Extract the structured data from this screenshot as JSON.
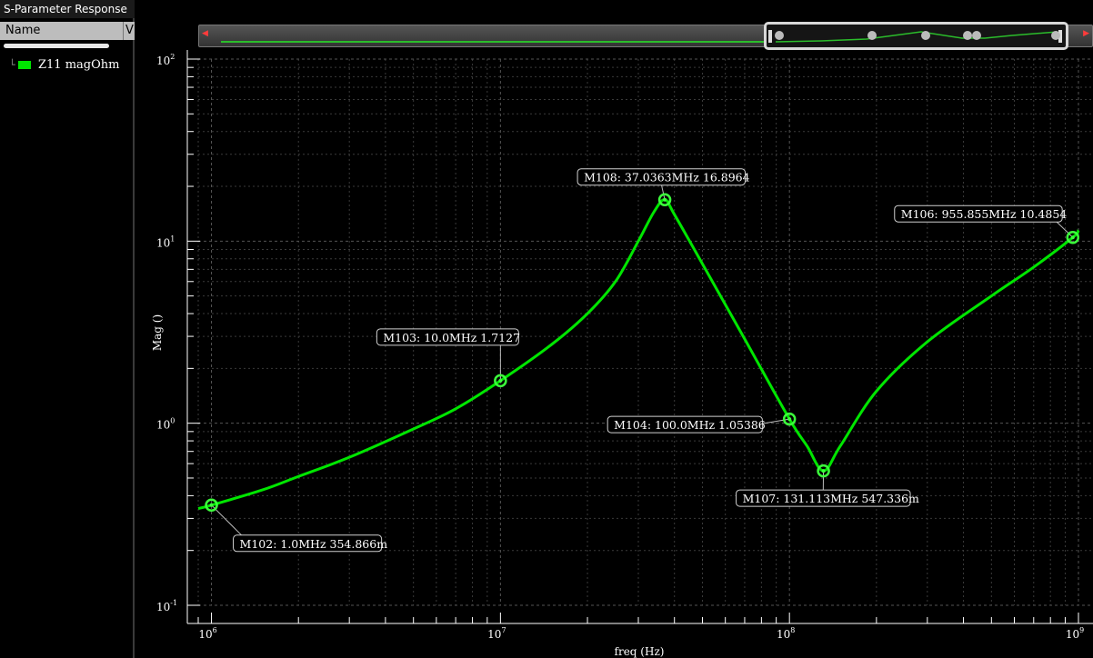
{
  "window": {
    "title": "S-Parameter Response"
  },
  "legend_panel": {
    "column_name": "Name",
    "column_v": "V",
    "items": [
      {
        "label": "Z11 magOhm",
        "color": "#00e600"
      }
    ]
  },
  "chart_data": {
    "type": "line",
    "xlabel": "freq (Hz)",
    "ylabel": "Mag ()",
    "x_scale": "log",
    "y_scale": "log",
    "xlim": [
      900000,
      1000000000
    ],
    "ylim": [
      0.1,
      100
    ],
    "x_ticks": [
      {
        "value": 1000000,
        "base": "10",
        "exp": "6"
      },
      {
        "value": 10000000,
        "base": "10",
        "exp": "7"
      },
      {
        "value": 100000000,
        "base": "10",
        "exp": "8"
      },
      {
        "value": 1000000000,
        "base": "10",
        "exp": "9"
      }
    ],
    "y_ticks": [
      {
        "value": 100,
        "base": "10",
        "exp": "2"
      },
      {
        "value": 10,
        "base": "10",
        "exp": "1"
      },
      {
        "value": 1,
        "base": "10",
        "exp": "0"
      },
      {
        "value": 0.1,
        "base": "10",
        "exp": "-1"
      }
    ],
    "grid": true,
    "series": [
      {
        "name": "Z11 magOhm",
        "color": "#00e600",
        "x": [
          900000,
          1000000,
          1500000,
          2000000,
          3000000,
          5000000,
          7000000,
          10000000,
          15000000,
          20000000,
          25000000,
          30000000,
          34000000,
          37036300,
          40000000,
          50000000,
          70000000,
          100000000,
          115000000,
          131113000,
          150000000,
          200000000,
          300000000,
          500000000,
          700000000,
          955855000,
          1000000000
        ],
        "y": [
          0.34,
          0.354866,
          0.43,
          0.51,
          0.65,
          0.93,
          1.2,
          1.7127,
          2.7,
          4.0,
          6.0,
          10.0,
          14.5,
          16.8964,
          14.0,
          7.5,
          2.9,
          1.05386,
          0.75,
          0.547336,
          0.75,
          1.5,
          2.8,
          5.0,
          7.2,
          10.4854,
          11.5
        ]
      }
    ],
    "markers": [
      {
        "name": "M102",
        "x": 1000000,
        "y": 0.354866,
        "label": "M102: 1.0MHz 354.866m"
      },
      {
        "name": "M103",
        "x": 10000000,
        "y": 1.7127,
        "label": "M103: 10.0MHz 1.7127"
      },
      {
        "name": "M108",
        "x": 37036300,
        "y": 16.8964,
        "label": "M108: 37.0363MHz 16.8964"
      },
      {
        "name": "M104",
        "x": 100000000,
        "y": 1.05386,
        "label": "M104: 100.0MHz 1.05386"
      },
      {
        "name": "M107",
        "x": 131113000,
        "y": 0.547336,
        "label": "M107: 131.113MHz 547.336m"
      },
      {
        "name": "M106",
        "x": 955855000,
        "y": 10.4854,
        "label": "M106: 955.855MHz 10.4854"
      }
    ]
  }
}
